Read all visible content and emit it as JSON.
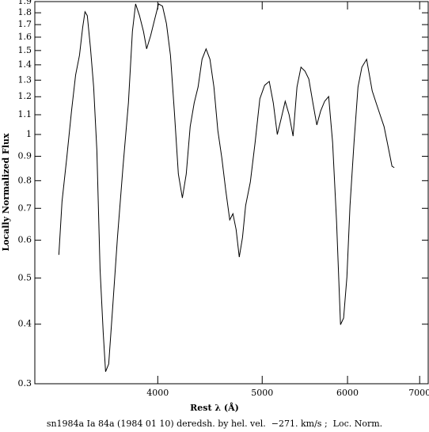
{
  "chart_data": {
    "type": "line",
    "footer": "sn1984a Ia 84a (1984 01 10) deredsh. by hel. vel.  −271. km/s ;  Loc. Norm.",
    "xlabel": "Rest λ (Å)",
    "ylabel": "Locally Normalized Flux",
    "xscale": "log",
    "yscale": "log",
    "color": "#000000",
    "xlim": [
      3076,
      7129
    ],
    "ylim": [
      0.3,
      1.9
    ],
    "xticks": [
      4000,
      5000,
      6000,
      7000
    ],
    "yticks": [
      0.3,
      0.4,
      0.5,
      0.6,
      0.7,
      0.8,
      0.9,
      1,
      1.1,
      1.2,
      1.3,
      1.4,
      1.5,
      1.6,
      1.7,
      1.8,
      1.9
    ],
    "x": [
      3238,
      3260,
      3293,
      3327,
      3356,
      3384,
      3407,
      3424,
      3441,
      3464,
      3488,
      3512,
      3536,
      3560,
      3578,
      3602,
      3632,
      3670,
      3714,
      3757,
      3789,
      3815,
      3847,
      3880,
      3906,
      3940,
      3973,
      4007,
      4041,
      4075,
      4110,
      4144,
      4180,
      4216,
      4251,
      4287,
      4324,
      4360,
      4397,
      4435,
      4472,
      4510,
      4548,
      4587,
      4625,
      4665,
      4697,
      4729,
      4761,
      4794,
      4826,
      4875,
      4925,
      4975,
      5026,
      5076,
      5120,
      5164,
      5207,
      5252,
      5296,
      5341,
      5386,
      5432,
      5479,
      5524,
      5572,
      5619,
      5666,
      5714,
      5763,
      5812,
      5861,
      5911,
      5950,
      5992,
      6032,
      6084,
      6136,
      6187,
      6250,
      6325,
      6378,
      6432,
      6487,
      6543,
      6598,
      6631
    ],
    "values": [
      0.559,
      0.723,
      0.892,
      1.121,
      1.332,
      1.466,
      1.676,
      1.809,
      1.775,
      1.523,
      1.258,
      0.926,
      0.522,
      0.384,
      0.318,
      0.33,
      0.431,
      0.608,
      0.858,
      1.165,
      1.644,
      1.879,
      1.775,
      1.644,
      1.512,
      1.613,
      1.741,
      1.879,
      1.858,
      1.708,
      1.466,
      1.121,
      0.826,
      0.736,
      0.826,
      1.039,
      1.165,
      1.258,
      1.438,
      1.512,
      1.438,
      1.258,
      1.019,
      0.892,
      0.765,
      0.662,
      0.682,
      0.632,
      0.553,
      0.608,
      0.709,
      0.795,
      0.962,
      1.188,
      1.268,
      1.292,
      1.165,
      1.0,
      1.08,
      1.174,
      1.1,
      0.992,
      1.258,
      1.384,
      1.358,
      1.307,
      1.165,
      1.047,
      1.121,
      1.174,
      1.201,
      0.962,
      0.657,
      0.399,
      0.412,
      0.502,
      0.709,
      0.962,
      1.258,
      1.384,
      1.438,
      1.234,
      1.165,
      1.1,
      1.039,
      0.944,
      0.858,
      0.852
    ]
  }
}
